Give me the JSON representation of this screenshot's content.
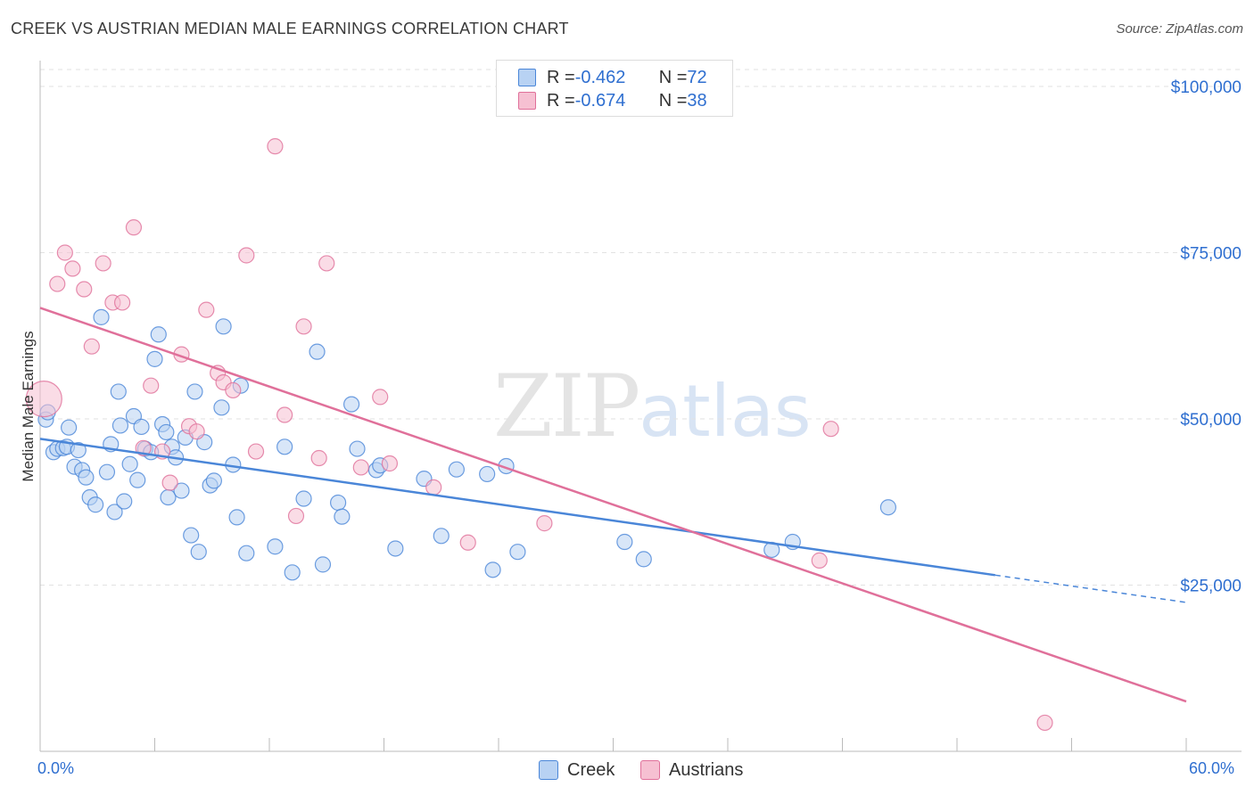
{
  "title": "CREEK VS AUSTRIAN MEDIAN MALE EARNINGS CORRELATION CHART",
  "source": "Source: ZipAtlas.com",
  "watermark": {
    "zip": "ZIP",
    "atlas": "atlas"
  },
  "legend": {
    "rows": [
      {
        "r_label": "R = ",
        "r_value": "-0.462",
        "n_label": "N = ",
        "n_value": "72"
      },
      {
        "r_label": "R = ",
        "r_value": "-0.674",
        "n_label": "N = ",
        "n_value": "38"
      }
    ]
  },
  "chart_data": {
    "type": "scatter",
    "title": "CREEK VS AUSTRIAN MEDIAN MALE EARNINGS CORRELATION CHART",
    "xlabel": "",
    "ylabel": "Median Male Earnings",
    "xlim": [
      0,
      60
    ],
    "ylim": [
      0,
      103000
    ],
    "x_tick_labels": [
      "0.0%",
      "60.0%"
    ],
    "y_ticks": [
      25000,
      50000,
      75000,
      100000
    ],
    "y_tick_labels": [
      "$25,000",
      "$50,000",
      "$75,000",
      "$100,000"
    ],
    "grid": true,
    "legend_position": "top-center",
    "colors": {
      "creek": "#4a86d8",
      "austrians": "#e0709a",
      "creek_fill": "#b8d2f3",
      "austrians_fill": "#f6c0d2"
    },
    "series": [
      {
        "name": "Creek",
        "r": -0.462,
        "n": 72,
        "trend": {
          "x0": 0,
          "y0": 47000,
          "x1": 50,
          "y1": 26500,
          "dash_to_x": 60,
          "dash_to_y": 22400
        },
        "points": [
          [
            0.3,
            49900
          ],
          [
            0.4,
            51000
          ],
          [
            0.7,
            45000
          ],
          [
            0.9,
            45500
          ],
          [
            1.2,
            45600
          ],
          [
            1.4,
            45800
          ],
          [
            1.5,
            48700
          ],
          [
            1.8,
            42800
          ],
          [
            2.0,
            45300
          ],
          [
            2.2,
            42300
          ],
          [
            2.4,
            41200
          ],
          [
            2.6,
            38200
          ],
          [
            2.9,
            37100
          ],
          [
            3.2,
            65300
          ],
          [
            3.5,
            42000
          ],
          [
            3.7,
            46200
          ],
          [
            3.9,
            36000
          ],
          [
            4.1,
            54100
          ],
          [
            4.2,
            49000
          ],
          [
            4.4,
            37600
          ],
          [
            4.7,
            43200
          ],
          [
            4.9,
            50400
          ],
          [
            5.1,
            40800
          ],
          [
            5.3,
            48800
          ],
          [
            5.5,
            45500
          ],
          [
            5.8,
            45000
          ],
          [
            6.0,
            59000
          ],
          [
            6.2,
            62700
          ],
          [
            6.4,
            49200
          ],
          [
            6.6,
            48000
          ],
          [
            6.7,
            38200
          ],
          [
            6.9,
            45800
          ],
          [
            7.1,
            44200
          ],
          [
            7.4,
            39200
          ],
          [
            7.6,
            47200
          ],
          [
            7.9,
            32500
          ],
          [
            8.1,
            54100
          ],
          [
            8.3,
            30000
          ],
          [
            8.6,
            46500
          ],
          [
            8.9,
            40000
          ],
          [
            9.1,
            40700
          ],
          [
            9.5,
            51700
          ],
          [
            9.6,
            63900
          ],
          [
            10.1,
            43100
          ],
          [
            10.3,
            35200
          ],
          [
            10.5,
            55000
          ],
          [
            10.8,
            29800
          ],
          [
            12.3,
            30800
          ],
          [
            12.8,
            45800
          ],
          [
            13.2,
            26900
          ],
          [
            13.8,
            38000
          ],
          [
            14.5,
            60100
          ],
          [
            14.8,
            28100
          ],
          [
            15.6,
            37400
          ],
          [
            15.8,
            35300
          ],
          [
            16.3,
            52200
          ],
          [
            16.6,
            45500
          ],
          [
            17.6,
            42300
          ],
          [
            17.8,
            43000
          ],
          [
            18.6,
            30500
          ],
          [
            20.1,
            41000
          ],
          [
            21.0,
            32400
          ],
          [
            21.8,
            42400
          ],
          [
            23.4,
            41700
          ],
          [
            23.7,
            27300
          ],
          [
            24.4,
            42900
          ],
          [
            25.0,
            30000
          ],
          [
            30.6,
            31500
          ],
          [
            31.6,
            28900
          ],
          [
            38.3,
            30300
          ],
          [
            39.4,
            31500
          ],
          [
            44.4,
            36700
          ]
        ]
      },
      {
        "name": "Austrians",
        "r": -0.674,
        "n": 38,
        "trend": {
          "x0": 0,
          "y0": 66700,
          "x1": 60,
          "y1": 7500
        },
        "points": [
          [
            0.2,
            53000
          ],
          [
            0.9,
            70300
          ],
          [
            1.3,
            75000
          ],
          [
            1.7,
            72600
          ],
          [
            2.3,
            69500
          ],
          [
            2.7,
            60900
          ],
          [
            3.3,
            73400
          ],
          [
            3.8,
            67500
          ],
          [
            4.3,
            67500
          ],
          [
            4.9,
            78800
          ],
          [
            5.4,
            45600
          ],
          [
            5.8,
            55000
          ],
          [
            6.4,
            45100
          ],
          [
            6.8,
            40400
          ],
          [
            7.4,
            59700
          ],
          [
            7.8,
            48900
          ],
          [
            8.2,
            48100
          ],
          [
            8.7,
            66400
          ],
          [
            9.3,
            56900
          ],
          [
            9.6,
            55500
          ],
          [
            10.1,
            54300
          ],
          [
            10.8,
            74600
          ],
          [
            11.3,
            45100
          ],
          [
            12.3,
            91000
          ],
          [
            12.8,
            50600
          ],
          [
            13.4,
            35400
          ],
          [
            13.8,
            63900
          ],
          [
            14.6,
            44100
          ],
          [
            15.0,
            73400
          ],
          [
            16.8,
            42700
          ],
          [
            17.8,
            53300
          ],
          [
            18.3,
            43300
          ],
          [
            20.6,
            39700
          ],
          [
            22.4,
            31400
          ],
          [
            26.4,
            34300
          ],
          [
            40.8,
            28700
          ],
          [
            41.4,
            48500
          ],
          [
            52.6,
            4300
          ]
        ]
      }
    ]
  }
}
